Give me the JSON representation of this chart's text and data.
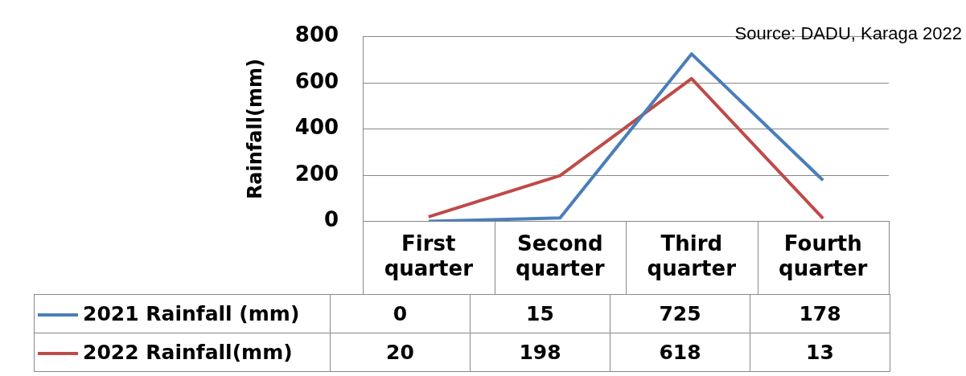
{
  "chart_data": {
    "type": "line",
    "ylabel": "Rainfall(mm)",
    "categories": [
      "First quarter",
      "Second quarter",
      "Third quarter",
      "Fourth quarter"
    ],
    "series": [
      {
        "name": "2021 Rainfall (mm)",
        "color": "#4a7ebb",
        "values": [
          0,
          15,
          725,
          178
        ]
      },
      {
        "name": "2022 Rainfall(mm)",
        "color": "#be4b48",
        "values": [
          20,
          198,
          618,
          13
        ]
      }
    ],
    "ylim": [
      0,
      800
    ],
    "yticks": [
      0,
      200,
      400,
      600,
      800
    ],
    "grid": "y",
    "legend": "bottom",
    "data_labels": true,
    "marker": "none",
    "line_style": "solid",
    "annotations": [
      "Source: DADU, Karaga 2022"
    ]
  }
}
